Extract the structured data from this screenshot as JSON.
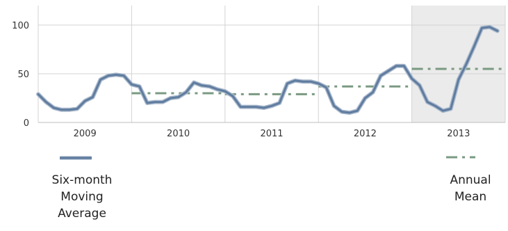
{
  "chart_data": {
    "type": "line",
    "title": "",
    "xlabel": "",
    "ylabel": "",
    "ylim": [
      0,
      120
    ],
    "y_ticks": [
      0,
      50,
      100
    ],
    "y_tick_labels": [
      "0",
      "50",
      "100"
    ],
    "x_range": [
      2009,
      2014
    ],
    "x_tick_labels": [
      "2009",
      "2010",
      "2011",
      "2012",
      "2013"
    ],
    "grid": "vertical lines at year boundaries, horizontal lines at 50 and 100",
    "highlight_band": {
      "from": 2013,
      "to": 2014,
      "color": "#ebebeb"
    },
    "series": [
      {
        "name": "Six-month Moving Average",
        "style": "solid",
        "color": "#6a86a6",
        "points": [
          [
            2009.0,
            29
          ],
          [
            2009.083,
            21
          ],
          [
            2009.167,
            15
          ],
          [
            2009.25,
            13
          ],
          [
            2009.333,
            13
          ],
          [
            2009.417,
            14
          ],
          [
            2009.5,
            22
          ],
          [
            2009.583,
            26
          ],
          [
            2009.667,
            44
          ],
          [
            2009.75,
            48
          ],
          [
            2009.833,
            49
          ],
          [
            2009.917,
            48
          ],
          [
            2010.0,
            39
          ],
          [
            2010.083,
            37
          ],
          [
            2010.167,
            20
          ],
          [
            2010.25,
            21
          ],
          [
            2010.333,
            21
          ],
          [
            2010.417,
            25
          ],
          [
            2010.5,
            26
          ],
          [
            2010.583,
            31
          ],
          [
            2010.667,
            41
          ],
          [
            2010.75,
            38
          ],
          [
            2010.833,
            37
          ],
          [
            2010.917,
            34
          ],
          [
            2011.0,
            32
          ],
          [
            2011.083,
            27
          ],
          [
            2011.167,
            16
          ],
          [
            2011.25,
            16
          ],
          [
            2011.333,
            16
          ],
          [
            2011.417,
            15
          ],
          [
            2011.5,
            17
          ],
          [
            2011.583,
            20
          ],
          [
            2011.667,
            40
          ],
          [
            2011.75,
            43
          ],
          [
            2011.833,
            42
          ],
          [
            2011.917,
            42
          ],
          [
            2012.0,
            40
          ],
          [
            2012.083,
            36
          ],
          [
            2012.167,
            17
          ],
          [
            2012.25,
            11
          ],
          [
            2012.333,
            10
          ],
          [
            2012.417,
            12
          ],
          [
            2012.5,
            25
          ],
          [
            2012.583,
            31
          ],
          [
            2012.667,
            48
          ],
          [
            2012.75,
            53
          ],
          [
            2012.833,
            58
          ],
          [
            2012.917,
            58
          ],
          [
            2013.0,
            45
          ],
          [
            2013.083,
            38
          ],
          [
            2013.167,
            21
          ],
          [
            2013.25,
            17
          ],
          [
            2013.333,
            12
          ],
          [
            2013.417,
            14
          ],
          [
            2013.5,
            44
          ],
          [
            2013.583,
            60
          ],
          [
            2013.667,
            78
          ],
          [
            2013.75,
            97
          ],
          [
            2013.833,
            98
          ],
          [
            2013.917,
            94
          ]
        ]
      },
      {
        "name": "Annual Mean",
        "style": "dash-dot",
        "color": "#7a9a82",
        "segments": [
          {
            "from": 2010,
            "to": 2011,
            "value": 30
          },
          {
            "from": 2011,
            "to": 2012,
            "value": 29
          },
          {
            "from": 2012,
            "to": 2013,
            "value": 37
          },
          {
            "from": 2013,
            "to": 2014,
            "value": 55
          }
        ]
      }
    ]
  },
  "legend": {
    "moving_average_label": "Six-month Moving Average",
    "annual_mean_label": "Annual Mean"
  }
}
